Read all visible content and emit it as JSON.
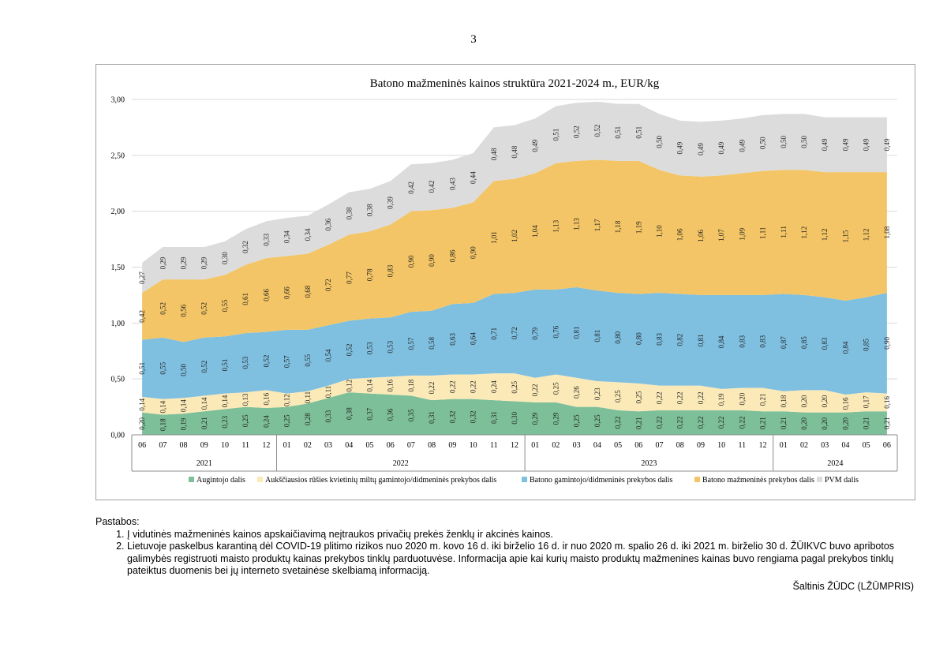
{
  "page": {
    "number": "3"
  },
  "chart_data": {
    "type": "area",
    "stacked": true,
    "title": "Batono mažmeninės  kainos struktūra 2021-2024 m., EUR/kg",
    "xlabel": "",
    "ylabel": "",
    "ylim": [
      0,
      3
    ],
    "yticks": [
      "0,00",
      "0,50",
      "1,00",
      "1,50",
      "2,00",
      "2,50",
      "3,00"
    ],
    "grid": true,
    "legend_position": "bottom",
    "categories": [
      "06",
      "07",
      "08",
      "09",
      "10",
      "11",
      "12",
      "01",
      "02",
      "03",
      "04",
      "05",
      "06",
      "07",
      "08",
      "09",
      "10",
      "11",
      "12",
      "01",
      "02",
      "03",
      "04",
      "05",
      "06",
      "07",
      "08",
      "09",
      "10",
      "11",
      "12",
      "01",
      "02",
      "03",
      "04",
      "05",
      "06"
    ],
    "year_groups": [
      {
        "label": "2021",
        "span": 7
      },
      {
        "label": "2022",
        "span": 12
      },
      {
        "label": "2023",
        "span": 12
      },
      {
        "label": "2024",
        "span": 6
      }
    ],
    "series": [
      {
        "name": "Augintojo dalis",
        "color": "#7dbf98",
        "values": [
          0.2,
          0.18,
          0.19,
          0.21,
          0.23,
          0.25,
          0.24,
          0.25,
          0.28,
          0.33,
          0.38,
          0.37,
          0.36,
          0.35,
          0.31,
          0.32,
          0.32,
          0.31,
          0.3,
          0.29,
          0.29,
          0.25,
          0.25,
          0.22,
          0.21,
          0.22,
          0.22,
          0.22,
          0.22,
          0.22,
          0.21,
          0.21,
          0.2,
          0.2,
          0.2,
          0.21,
          0.21
        ],
        "labels": [
          "0,20",
          "0,18",
          "0,19",
          "0,21",
          "0,23",
          "0,25",
          "0,24",
          "0,25",
          "0,28",
          "0,33",
          "0,38",
          "0,37",
          "0,36",
          "0,35",
          "0,31",
          "0,32",
          "0,32",
          "0,31",
          "0,30",
          "0,29",
          "0,29",
          "0,25",
          "0,25",
          "0,22",
          "0,21",
          "0,22",
          "0,22",
          "0,22",
          "0,22",
          "0,22",
          "0,21",
          "0,21",
          "0,20",
          "0,20",
          "0,20",
          "0,21",
          "0,21"
        ]
      },
      {
        "name": "Aukščiausios rūšies kvietinių miltų gamintojo/didmeninės prekybos dalis",
        "color": "#fbeab8",
        "values": [
          0.14,
          0.14,
          0.14,
          0.14,
          0.14,
          0.13,
          0.16,
          0.12,
          0.11,
          0.11,
          0.12,
          0.14,
          0.16,
          0.18,
          0.22,
          0.22,
          0.22,
          0.24,
          0.25,
          0.22,
          0.25,
          0.26,
          0.23,
          0.25,
          0.25,
          0.22,
          0.22,
          0.22,
          0.19,
          0.2,
          0.21,
          0.18,
          0.2,
          0.2,
          0.16,
          0.17,
          0.16
        ],
        "labels": [
          "0,14",
          "0,14",
          "0,14",
          "0,14",
          "0,14",
          "0,13",
          "0,16",
          "0,12",
          "0,11",
          "0,11",
          "0,12",
          "0,14",
          "0,16",
          "0,18",
          "0,22",
          "0,22",
          "0,22",
          "0,24",
          "0,25",
          "0,22",
          "0,25",
          "0,26",
          "0,23",
          "0,25",
          "0,25",
          "0,22",
          "0,22",
          "0,22",
          "0,19",
          "0,20",
          "0,21",
          "0,18",
          "0,20",
          "0,20",
          "0,16",
          "0,17",
          "0,16"
        ]
      },
      {
        "name": "Batono gamintojo/didmeninės prekybos dalis",
        "color": "#7fbfe0",
        "values": [
          0.51,
          0.55,
          0.5,
          0.52,
          0.51,
          0.53,
          0.52,
          0.57,
          0.55,
          0.54,
          0.52,
          0.53,
          0.53,
          0.57,
          0.58,
          0.63,
          0.64,
          0.71,
          0.72,
          0.79,
          0.76,
          0.81,
          0.81,
          0.8,
          0.8,
          0.83,
          0.82,
          0.81,
          0.84,
          0.83,
          0.83,
          0.87,
          0.85,
          0.83,
          0.84,
          0.85,
          0.9
        ],
        "labels": [
          "0,51",
          "0,55",
          "0,50",
          "0,52",
          "0,51",
          "0,53",
          "0,52",
          "0,57",
          "0,55",
          "0,54",
          "0,52",
          "0,53",
          "0,53",
          "0,57",
          "0,58",
          "0,63",
          "0,64",
          "0,71",
          "0,72",
          "0,79",
          "0,76",
          "0,81",
          "0,81",
          "0,80",
          "0,80",
          "0,83",
          "0,82",
          "0,81",
          "0,84",
          "0,83",
          "0,83",
          "0,87",
          "0,85",
          "0,83",
          "0,84",
          "0,85",
          "0,90"
        ]
      },
      {
        "name": "Batono mažmeninės prekybos dalis",
        "color": "#f3c566",
        "values": [
          0.42,
          0.52,
          0.56,
          0.52,
          0.55,
          0.61,
          0.66,
          0.66,
          0.68,
          0.72,
          0.77,
          0.78,
          0.83,
          0.9,
          0.9,
          0.86,
          0.9,
          1.01,
          1.02,
          1.04,
          1.13,
          1.13,
          1.17,
          1.18,
          1.19,
          1.1,
          1.06,
          1.06,
          1.07,
          1.09,
          1.11,
          1.11,
          1.12,
          1.12,
          1.15,
          1.12,
          1.08
        ],
        "labels": [
          "0,42",
          "0,52",
          "0,56",
          "0,52",
          "0,55",
          "0,61",
          "0,66",
          "0,66",
          "0,68",
          "0,72",
          "0,77",
          "0,78",
          "0,83",
          "0,90",
          "0,90",
          "0,86",
          "0,90",
          "1,01",
          "1,02",
          "1,04",
          "1,13",
          "1,13",
          "1,17",
          "1,18",
          "1,19",
          "1,10",
          "1,06",
          "1,06",
          "1,07",
          "1,09",
          "1,11",
          "1,11",
          "1,12",
          "1,12",
          "1,15",
          "1,12",
          "1,08"
        ]
      },
      {
        "name": "PVM dalis",
        "color": "#dcdcdc",
        "values": [
          0.27,
          0.29,
          0.29,
          0.29,
          0.3,
          0.32,
          0.33,
          0.34,
          0.34,
          0.36,
          0.38,
          0.38,
          0.39,
          0.42,
          0.42,
          0.43,
          0.44,
          0.48,
          0.48,
          0.49,
          0.51,
          0.52,
          0.52,
          0.51,
          0.51,
          0.5,
          0.49,
          0.49,
          0.49,
          0.49,
          0.5,
          0.5,
          0.5,
          0.49,
          0.49,
          0.49,
          0.49
        ],
        "labels": [
          "0,27",
          "0,29",
          "0,29",
          "0,29",
          "0,30",
          "0,32",
          "0,33",
          "0,34",
          "0,34",
          "0,36",
          "0,38",
          "0,38",
          "0,39",
          "0,42",
          "0,42",
          "0,43",
          "0,44",
          "0,48",
          "0,48",
          "0,49",
          "0,51",
          "0,52",
          "0,52",
          "0,51",
          "0,51",
          "0,50",
          "0,49",
          "0,49",
          "0,49",
          "0,49",
          "0,50",
          "0,50",
          "0,50",
          "0,49",
          "0,49",
          "0,49",
          "0,49"
        ]
      }
    ]
  },
  "notes": {
    "heading": "Pastabos:",
    "items": [
      "Į vidutinės mažmeninės kainos apskaičiavimą neįtraukos privačių prekės ženklų ir akcinės kainos.",
      "Lietuvoje paskelbus karantiną dėl COVID-19 plitimo rizikos nuo 2020 m. kovo 16 d. iki birželio 16 d. ir nuo 2020 m. spalio 26 d. iki 2021 m. birželio 30 d. ŽŪIKVC buvo apribotos galimybės registruoti maisto produktų kainas prekybos tinklų parduotuvėse. Informacija apie kai kurių maisto produktų mažmenines kainas buvo rengiama pagal prekybos tinklų pateiktus duomenis bei jų interneto svetainėse skelbiamą informaciją."
    ]
  },
  "source": "Šaltinis ŽŪDC (LŽŪMPRIS)"
}
